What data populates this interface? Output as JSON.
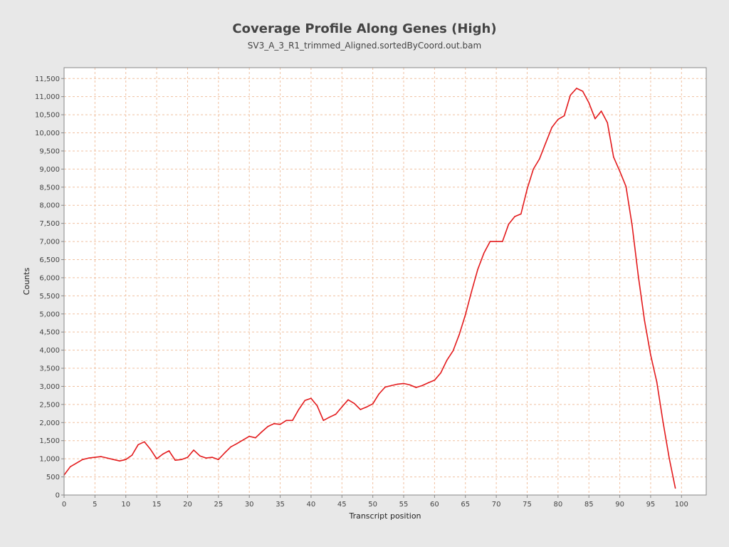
{
  "chart_data": {
    "type": "line",
    "title": "Coverage Profile Along Genes (High)",
    "subtitle": "SV3_A_3_R1_trimmed_Aligned.sortedByCoord.out.bam",
    "xlabel": "Transcript position",
    "ylabel": "Counts",
    "xlim": [
      0,
      104
    ],
    "ylim": [
      0,
      11800
    ],
    "x_ticks": [
      0,
      5,
      10,
      15,
      20,
      25,
      30,
      35,
      40,
      45,
      50,
      55,
      60,
      65,
      70,
      75,
      80,
      85,
      90,
      95,
      100
    ],
    "x_tick_labels": [
      "0",
      "5",
      "10",
      "15",
      "20",
      "25",
      "30",
      "35",
      "40",
      "45",
      "50",
      "55",
      "60",
      "65",
      "70",
      "75",
      "80",
      "85",
      "90",
      "95",
      "100"
    ],
    "y_ticks": [
      0,
      500,
      1000,
      1500,
      2000,
      2500,
      3000,
      3500,
      4000,
      4500,
      5000,
      5500,
      6000,
      6500,
      7000,
      7500,
      8000,
      8500,
      9000,
      9500,
      10000,
      10500,
      11000,
      11500
    ],
    "y_tick_labels": [
      "0",
      "500",
      "1,000",
      "1,500",
      "2,000",
      "2,500",
      "3,000",
      "3,500",
      "4,000",
      "4,500",
      "5,000",
      "5,500",
      "6,000",
      "6,500",
      "7,000",
      "7,500",
      "8,000",
      "8,500",
      "9,000",
      "9,500",
      "10,000",
      "10,500",
      "11,000",
      "11,500"
    ],
    "grid": true,
    "colors": {
      "line": "#e31a1c",
      "grid": "#f0c0a0",
      "plot_background": "#ffffff",
      "page_background": "#e8e8e8"
    },
    "series": [
      {
        "x": [
          0,
          1,
          2,
          3,
          4,
          5,
          6,
          7,
          8,
          9,
          10,
          11,
          12,
          13,
          14,
          15,
          16,
          17,
          18,
          19,
          20,
          21,
          22,
          23,
          24,
          25,
          26,
          27,
          28,
          29,
          30,
          31,
          32,
          33,
          34,
          35,
          36,
          37,
          38,
          39,
          40,
          41,
          42,
          43,
          44,
          45,
          46,
          47,
          48,
          49,
          50,
          51,
          52,
          53,
          54,
          55,
          56,
          57,
          58,
          59,
          60,
          61,
          62,
          63,
          64,
          65,
          66,
          67,
          68,
          69,
          70,
          71,
          72,
          73,
          74,
          75,
          76,
          77,
          78,
          79,
          80,
          81,
          82,
          83,
          84,
          85,
          86,
          87,
          88,
          89,
          90,
          91,
          92,
          93,
          94,
          95,
          96,
          97,
          98,
          99
        ],
        "values": [
          550,
          780,
          880,
          980,
          1020,
          1040,
          1060,
          1020,
          980,
          940,
          980,
          1100,
          1390,
          1470,
          1260,
          1000,
          1130,
          1220,
          960,
          980,
          1040,
          1240,
          1080,
          1020,
          1040,
          980,
          1160,
          1330,
          1420,
          1520,
          1620,
          1580,
          1740,
          1890,
          1970,
          1950,
          2060,
          2060,
          2360,
          2610,
          2670,
          2460,
          2060,
          2150,
          2230,
          2430,
          2630,
          2530,
          2360,
          2430,
          2520,
          2790,
          2980,
          3020,
          3060,
          3080,
          3040,
          2970,
          3020,
          3100,
          3170,
          3370,
          3720,
          3980,
          4430,
          4980,
          5620,
          6230,
          6680,
          7000,
          7000,
          7000,
          7480,
          7690,
          7760,
          8450,
          9000,
          9280,
          9720,
          10150,
          10370,
          10470,
          11040,
          11230,
          11150,
          10830,
          10390,
          10600,
          10280,
          9330,
          8940,
          8520,
          7450,
          6050,
          4820,
          3870,
          3120,
          2020,
          1020,
          190
        ]
      }
    ]
  }
}
